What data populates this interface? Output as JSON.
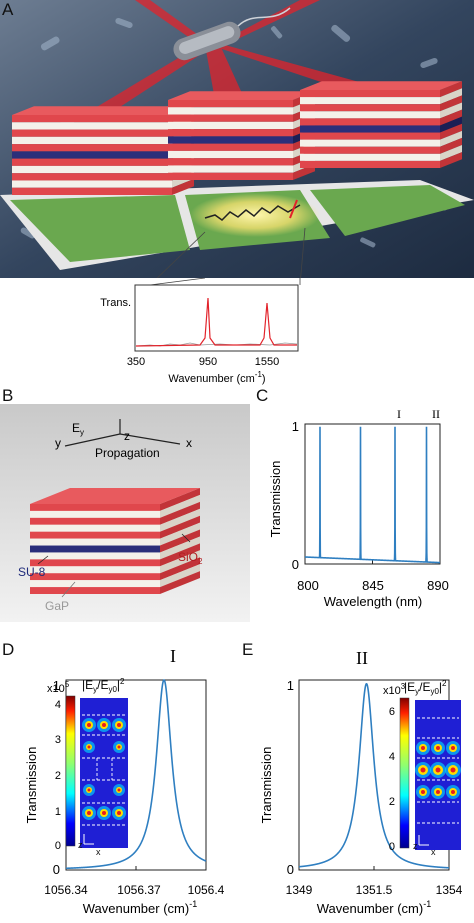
{
  "panels": {
    "A": {
      "letter": "A",
      "inset": {
        "ylabel": "Trans.",
        "xticks": [
          "350",
          "950",
          "1550"
        ],
        "xlabel": "Wavenumber (cm",
        "xlabel_sup": "-1",
        "xlabel_end": ")"
      }
    },
    "B": {
      "letter": "B",
      "axis_y": "y",
      "axis_e": "E",
      "axis_e_sub": "y",
      "axis_z": "z",
      "axis_x": "x",
      "propagation": "Propagation",
      "label_su8": "SU-8",
      "label_gap": "GaP",
      "label_sio2": "SiO",
      "label_sio2_sub": "2"
    },
    "C": {
      "letter": "C",
      "marker_1": "I",
      "marker_2": "II",
      "xticks": [
        "800",
        "845",
        "890"
      ],
      "yticks": [
        "0",
        "1"
      ],
      "xlabel": "Wavelength (nm)",
      "ylabel": "Transmission",
      "colors": {
        "line": "#2f7fc1"
      }
    },
    "D": {
      "letter": "D",
      "title": "I",
      "xticks": [
        "1056.34",
        "1056.37",
        "1056.4"
      ],
      "yticks": [
        "0",
        "1"
      ],
      "xlabel": "Wavenumber (cm)",
      "xlabel_sup": "-1",
      "ylabel": "Transmission",
      "colorbar_exp": "x10",
      "colorbar_exp_sup": "5",
      "colorbar_ticks": [
        "4",
        "3",
        "2",
        "1",
        "0"
      ],
      "colorbar_label": "|E",
      "colorbar_label_mid": "/E",
      "colorbar_label_end": "|",
      "colorbar_label_sub1": "y",
      "colorbar_label_sub2": "y0",
      "colorbar_label_sup": "2",
      "axis_z": "z",
      "axis_x": "x"
    },
    "E": {
      "letter": "E",
      "title": "II",
      "xticks": [
        "1349",
        "1351.5",
        "1354"
      ],
      "yticks": [
        "0",
        "1"
      ],
      "xlabel": "Wavenumber (cm)",
      "xlabel_sup": "-1",
      "ylabel": "Transmission",
      "colorbar_exp": "x10",
      "colorbar_exp_sup": "3",
      "colorbar_ticks": [
        "6",
        "4",
        "2",
        "0"
      ],
      "colorbar_label": "|E",
      "colorbar_label_mid": "/E",
      "colorbar_label_end": "|",
      "colorbar_label_sub1": "y",
      "colorbar_label_sub2": "y0",
      "colorbar_label_sup": "2",
      "axis_z": "z",
      "axis_x": "x"
    }
  },
  "chart_data": [
    {
      "panel": "C",
      "type": "line",
      "xlabel": "Wavelength (nm)",
      "ylabel": "Transmission",
      "xlim": [
        800,
        890
      ],
      "ylim": [
        0,
        1
      ],
      "peaks_x": [
        810,
        837,
        860,
        881
      ],
      "peak_height": 0.98,
      "baseline_start": 0.05,
      "baseline_end": 0.01
    },
    {
      "panel": "D",
      "type": "line",
      "xlabel": "Wavenumber (cm)-1",
      "ylabel": "Transmission",
      "xlim": [
        1056.34,
        1056.4
      ],
      "ylim": [
        0,
        1
      ],
      "peak_x": 1056.382,
      "peak_y": 1.0,
      "half_width": 0.004
    },
    {
      "panel": "E",
      "type": "line",
      "xlabel": "Wavenumber (cm)-1",
      "ylabel": "Transmission",
      "xlim": [
        1349,
        1354
      ],
      "ylim": [
        0,
        1
      ],
      "peak_x": 1351.25,
      "peak_y": 0.98,
      "half_width": 0.3
    }
  ]
}
